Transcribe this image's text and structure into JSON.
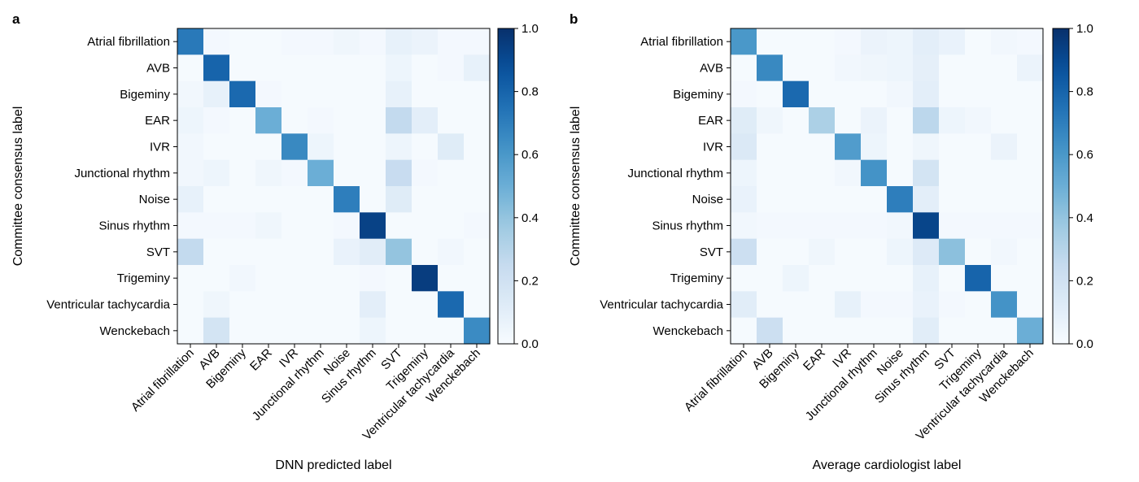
{
  "chart_data": [
    {
      "type": "heatmap",
      "panel_label": "a",
      "xlabel": "DNN predicted label",
      "ylabel": "Committee consensus label",
      "categories": [
        "Atrial fibrillation",
        "AVB",
        "Bigeminy",
        "EAR",
        "IVR",
        "Junctional rhythm",
        "Noise",
        "Sinus rhythm",
        "SVT",
        "Trigeminy",
        "Ventricular tachycardia",
        "Wenckebach"
      ],
      "colorbar": {
        "range": [
          0,
          1
        ],
        "ticks": [
          "0.0",
          "0.2",
          "0.4",
          "0.6",
          "0.8",
          "1.0"
        ],
        "colormap": "Blues"
      },
      "values": [
        [
          0.72,
          0.02,
          0.01,
          0.01,
          0.02,
          0.02,
          0.04,
          0.02,
          0.08,
          0.06,
          0.02,
          0.02
        ],
        [
          0.01,
          0.8,
          0.01,
          0.01,
          0.01,
          0.01,
          0.01,
          0.01,
          0.05,
          0.01,
          0.02,
          0.08
        ],
        [
          0.03,
          0.08,
          0.78,
          0.02,
          0.01,
          0.01,
          0.01,
          0.01,
          0.08,
          0.01,
          0.01,
          0.01
        ],
        [
          0.05,
          0.02,
          0.01,
          0.5,
          0.01,
          0.02,
          0.01,
          0.01,
          0.26,
          0.1,
          0.01,
          0.01
        ],
        [
          0.03,
          0.01,
          0.01,
          0.01,
          0.66,
          0.05,
          0.01,
          0.01,
          0.05,
          0.01,
          0.12,
          0.01
        ],
        [
          0.03,
          0.05,
          0.01,
          0.04,
          0.02,
          0.5,
          0.01,
          0.01,
          0.24,
          0.02,
          0.01,
          0.01
        ],
        [
          0.08,
          0.01,
          0.01,
          0.01,
          0.01,
          0.01,
          0.7,
          0.01,
          0.12,
          0.01,
          0.01,
          0.01
        ],
        [
          0.02,
          0.02,
          0.02,
          0.04,
          0.01,
          0.01,
          0.02,
          0.93,
          0.01,
          0.01,
          0.01,
          0.02
        ],
        [
          0.26,
          0.01,
          0.01,
          0.01,
          0.01,
          0.01,
          0.07,
          0.11,
          0.4,
          0.01,
          0.03,
          0.01
        ],
        [
          0.01,
          0.01,
          0.03,
          0.01,
          0.01,
          0.01,
          0.01,
          0.02,
          0.01,
          0.95,
          0.01,
          0.01
        ],
        [
          0.01,
          0.04,
          0.01,
          0.01,
          0.01,
          0.01,
          0.01,
          0.1,
          0.01,
          0.01,
          0.78,
          0.01
        ],
        [
          0.01,
          0.18,
          0.01,
          0.01,
          0.01,
          0.01,
          0.01,
          0.05,
          0.01,
          0.01,
          0.01,
          0.65
        ]
      ]
    },
    {
      "type": "heatmap",
      "panel_label": "b",
      "xlabel": "Average cardiologist label",
      "ylabel": "Committee consensus label",
      "categories": [
        "Atrial fibrillation",
        "AVB",
        "Bigeminy",
        "EAR",
        "IVR",
        "Junctional rhythm",
        "Noise",
        "Sinus rhythm",
        "SVT",
        "Trigeminy",
        "Ventricular tachycardia",
        "Wenckebach"
      ],
      "colorbar": {
        "range": [
          0,
          1
        ],
        "ticks": [
          "0.0",
          "0.2",
          "0.4",
          "0.6",
          "0.8",
          "1.0"
        ],
        "colormap": "Blues"
      },
      "values": [
        [
          0.6,
          0.01,
          0.01,
          0.01,
          0.02,
          0.06,
          0.05,
          0.1,
          0.07,
          0.01,
          0.03,
          0.02
        ],
        [
          0.01,
          0.66,
          0.01,
          0.01,
          0.03,
          0.04,
          0.05,
          0.09,
          0.01,
          0.01,
          0.01,
          0.06
        ],
        [
          0.02,
          0.01,
          0.78,
          0.01,
          0.01,
          0.01,
          0.03,
          0.1,
          0.01,
          0.01,
          0.01,
          0.01
        ],
        [
          0.12,
          0.04,
          0.01,
          0.33,
          0.01,
          0.06,
          0.01,
          0.28,
          0.05,
          0.03,
          0.01,
          0.01
        ],
        [
          0.14,
          0.01,
          0.01,
          0.01,
          0.58,
          0.05,
          0.01,
          0.04,
          0.01,
          0.01,
          0.06,
          0.01
        ],
        [
          0.05,
          0.01,
          0.01,
          0.01,
          0.03,
          0.62,
          0.01,
          0.18,
          0.01,
          0.01,
          0.01,
          0.01
        ],
        [
          0.07,
          0.01,
          0.01,
          0.01,
          0.01,
          0.01,
          0.7,
          0.1,
          0.01,
          0.01,
          0.01,
          0.01
        ],
        [
          0.03,
          0.02,
          0.02,
          0.02,
          0.02,
          0.02,
          0.03,
          0.92,
          0.02,
          0.02,
          0.02,
          0.02
        ],
        [
          0.22,
          0.01,
          0.01,
          0.04,
          0.01,
          0.01,
          0.05,
          0.13,
          0.42,
          0.01,
          0.03,
          0.01
        ],
        [
          0.01,
          0.01,
          0.05,
          0.01,
          0.01,
          0.01,
          0.01,
          0.08,
          0.01,
          0.8,
          0.01,
          0.01
        ],
        [
          0.11,
          0.01,
          0.01,
          0.01,
          0.08,
          0.02,
          0.02,
          0.07,
          0.02,
          0.01,
          0.62,
          0.01
        ],
        [
          0.01,
          0.22,
          0.01,
          0.01,
          0.01,
          0.01,
          0.01,
          0.11,
          0.01,
          0.01,
          0.01,
          0.5
        ]
      ]
    }
  ]
}
